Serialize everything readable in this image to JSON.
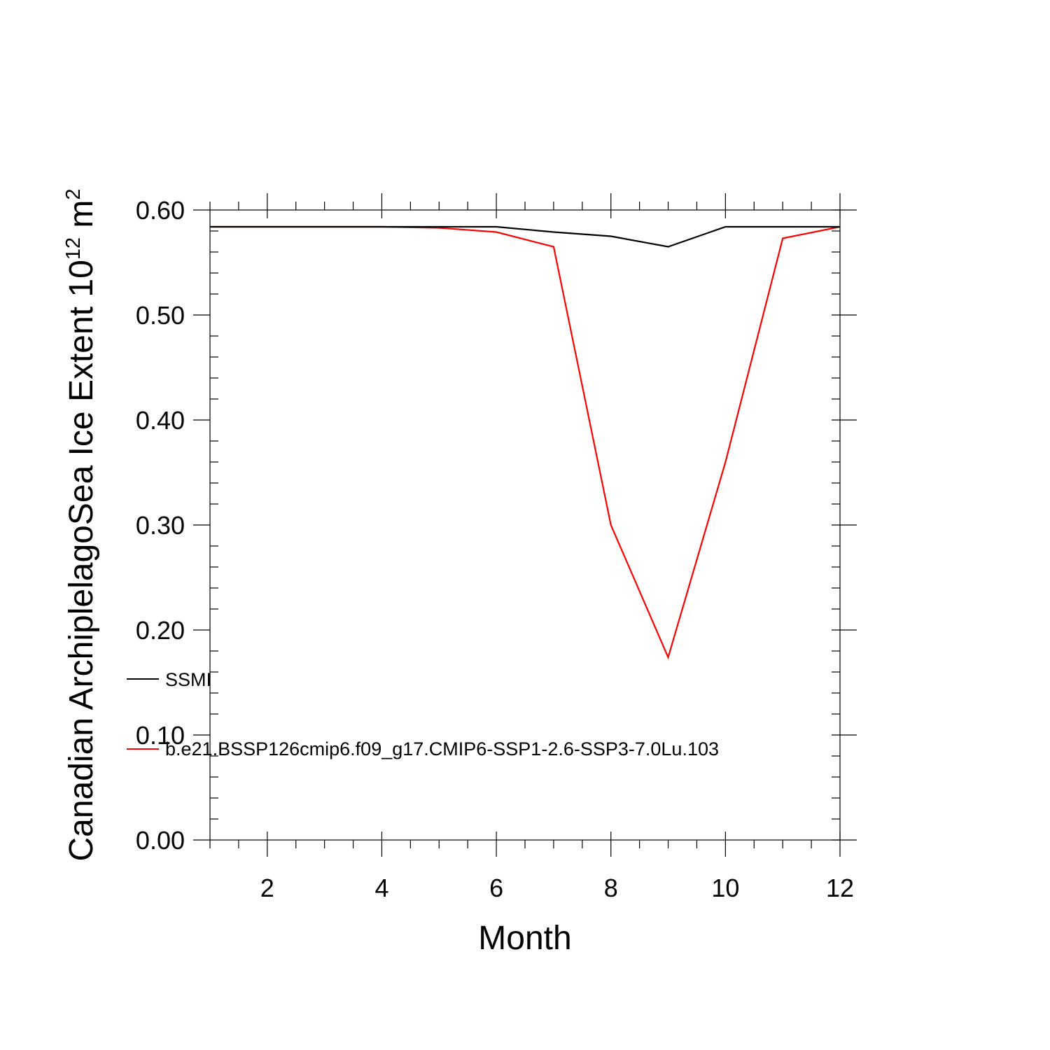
{
  "chart_data": {
    "type": "line",
    "title": "",
    "xlabel": "Month",
    "ylabel": "Canadian ArchiplelagoSea Ice Extent 10",
    "ylabel_exponent": "12",
    "ylabel_unit": " m",
    "ylabel_unit_exponent": "2",
    "xlim": [
      1,
      12
    ],
    "ylim": [
      0,
      0.6
    ],
    "x_ticks": [
      2,
      4,
      6,
      8,
      10,
      12
    ],
    "y_ticks": [
      "0.00",
      "0.10",
      "0.20",
      "0.30",
      "0.40",
      "0.50",
      "0.60"
    ],
    "x": [
      1,
      2,
      3,
      4,
      5,
      6,
      7,
      8,
      9,
      10,
      11,
      12
    ],
    "series": [
      {
        "name": "SSMI",
        "color": "#000000",
        "values": [
          0.584,
          0.584,
          0.584,
          0.584,
          0.584,
          0.584,
          0.579,
          0.575,
          0.565,
          0.584,
          0.584,
          0.584
        ]
      },
      {
        "name": "b.e21.BSSP126cmip6.f09_g17.CMIP6-SSP1-2.6-SSP3-7.0Lu.103",
        "color": "#ff0000",
        "values": [
          0.584,
          0.584,
          0.584,
          0.584,
          0.583,
          0.579,
          0.565,
          0.3,
          0.174,
          0.36,
          0.573,
          0.584
        ]
      }
    ],
    "grid": false,
    "legend_position": "lower-left"
  }
}
